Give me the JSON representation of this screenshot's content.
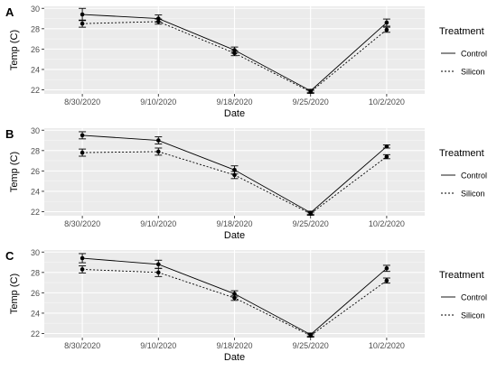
{
  "chart_data": [
    {
      "panel": "A",
      "type": "line",
      "x": [
        "8/30/2020",
        "9/10/2020",
        "9/18/2020",
        "9/25/2020",
        "10/2/2020"
      ],
      "xlabel": "Date",
      "ylabel": "Temp (C)",
      "ylim": [
        21.6,
        30.2
      ],
      "yticks": [
        22,
        24,
        26,
        28,
        30
      ],
      "grid": true,
      "legend": {
        "title": "Treatment",
        "position": "right"
      },
      "series": [
        {
          "name": "Control",
          "line": "solid",
          "values": [
            29.4,
            29.0,
            25.9,
            21.9,
            28.6
          ],
          "err": [
            0.6,
            0.35,
            0.3,
            0.15,
            0.35
          ]
        },
        {
          "name": "Silicon",
          "line": "dotted",
          "values": [
            28.5,
            28.7,
            25.6,
            21.8,
            27.9
          ],
          "err": [
            0.35,
            0.25,
            0.25,
            0.15,
            0.25
          ]
        }
      ]
    },
    {
      "panel": "B",
      "type": "line",
      "x": [
        "8/30/2020",
        "9/10/2020",
        "9/18/2020",
        "9/25/2020",
        "10/2/2020"
      ],
      "xlabel": "Date",
      "ylabel": "Temp (C)",
      "ylim": [
        21.6,
        30.2
      ],
      "yticks": [
        22,
        24,
        26,
        28,
        30
      ],
      "grid": true,
      "legend": {
        "title": "Treatment",
        "position": "right"
      },
      "series": [
        {
          "name": "Control",
          "line": "solid",
          "values": [
            29.5,
            29.0,
            26.1,
            21.9,
            28.4
          ],
          "err": [
            0.35,
            0.35,
            0.4,
            0.15,
            0.15
          ]
        },
        {
          "name": "Silicon",
          "line": "dotted",
          "values": [
            27.8,
            27.9,
            25.6,
            21.8,
            27.4
          ],
          "err": [
            0.35,
            0.35,
            0.35,
            0.15,
            0.2
          ]
        }
      ]
    },
    {
      "panel": "C",
      "type": "line",
      "x": [
        "8/30/2020",
        "9/10/2020",
        "9/18/2020",
        "9/25/2020",
        "10/2/2020"
      ],
      "xlabel": "Date",
      "ylabel": "Temp (C)",
      "ylim": [
        21.6,
        30.2
      ],
      "yticks": [
        22,
        24,
        26,
        28,
        30
      ],
      "grid": true,
      "legend": {
        "title": "Treatment",
        "position": "right"
      },
      "series": [
        {
          "name": "Control",
          "line": "solid",
          "values": [
            29.4,
            28.8,
            25.9,
            21.9,
            28.4
          ],
          "err": [
            0.45,
            0.4,
            0.3,
            0.15,
            0.3
          ]
        },
        {
          "name": "Silicon",
          "line": "dotted",
          "values": [
            28.3,
            28.0,
            25.5,
            21.8,
            27.2
          ],
          "err": [
            0.35,
            0.4,
            0.25,
            0.15,
            0.25
          ]
        }
      ]
    }
  ]
}
